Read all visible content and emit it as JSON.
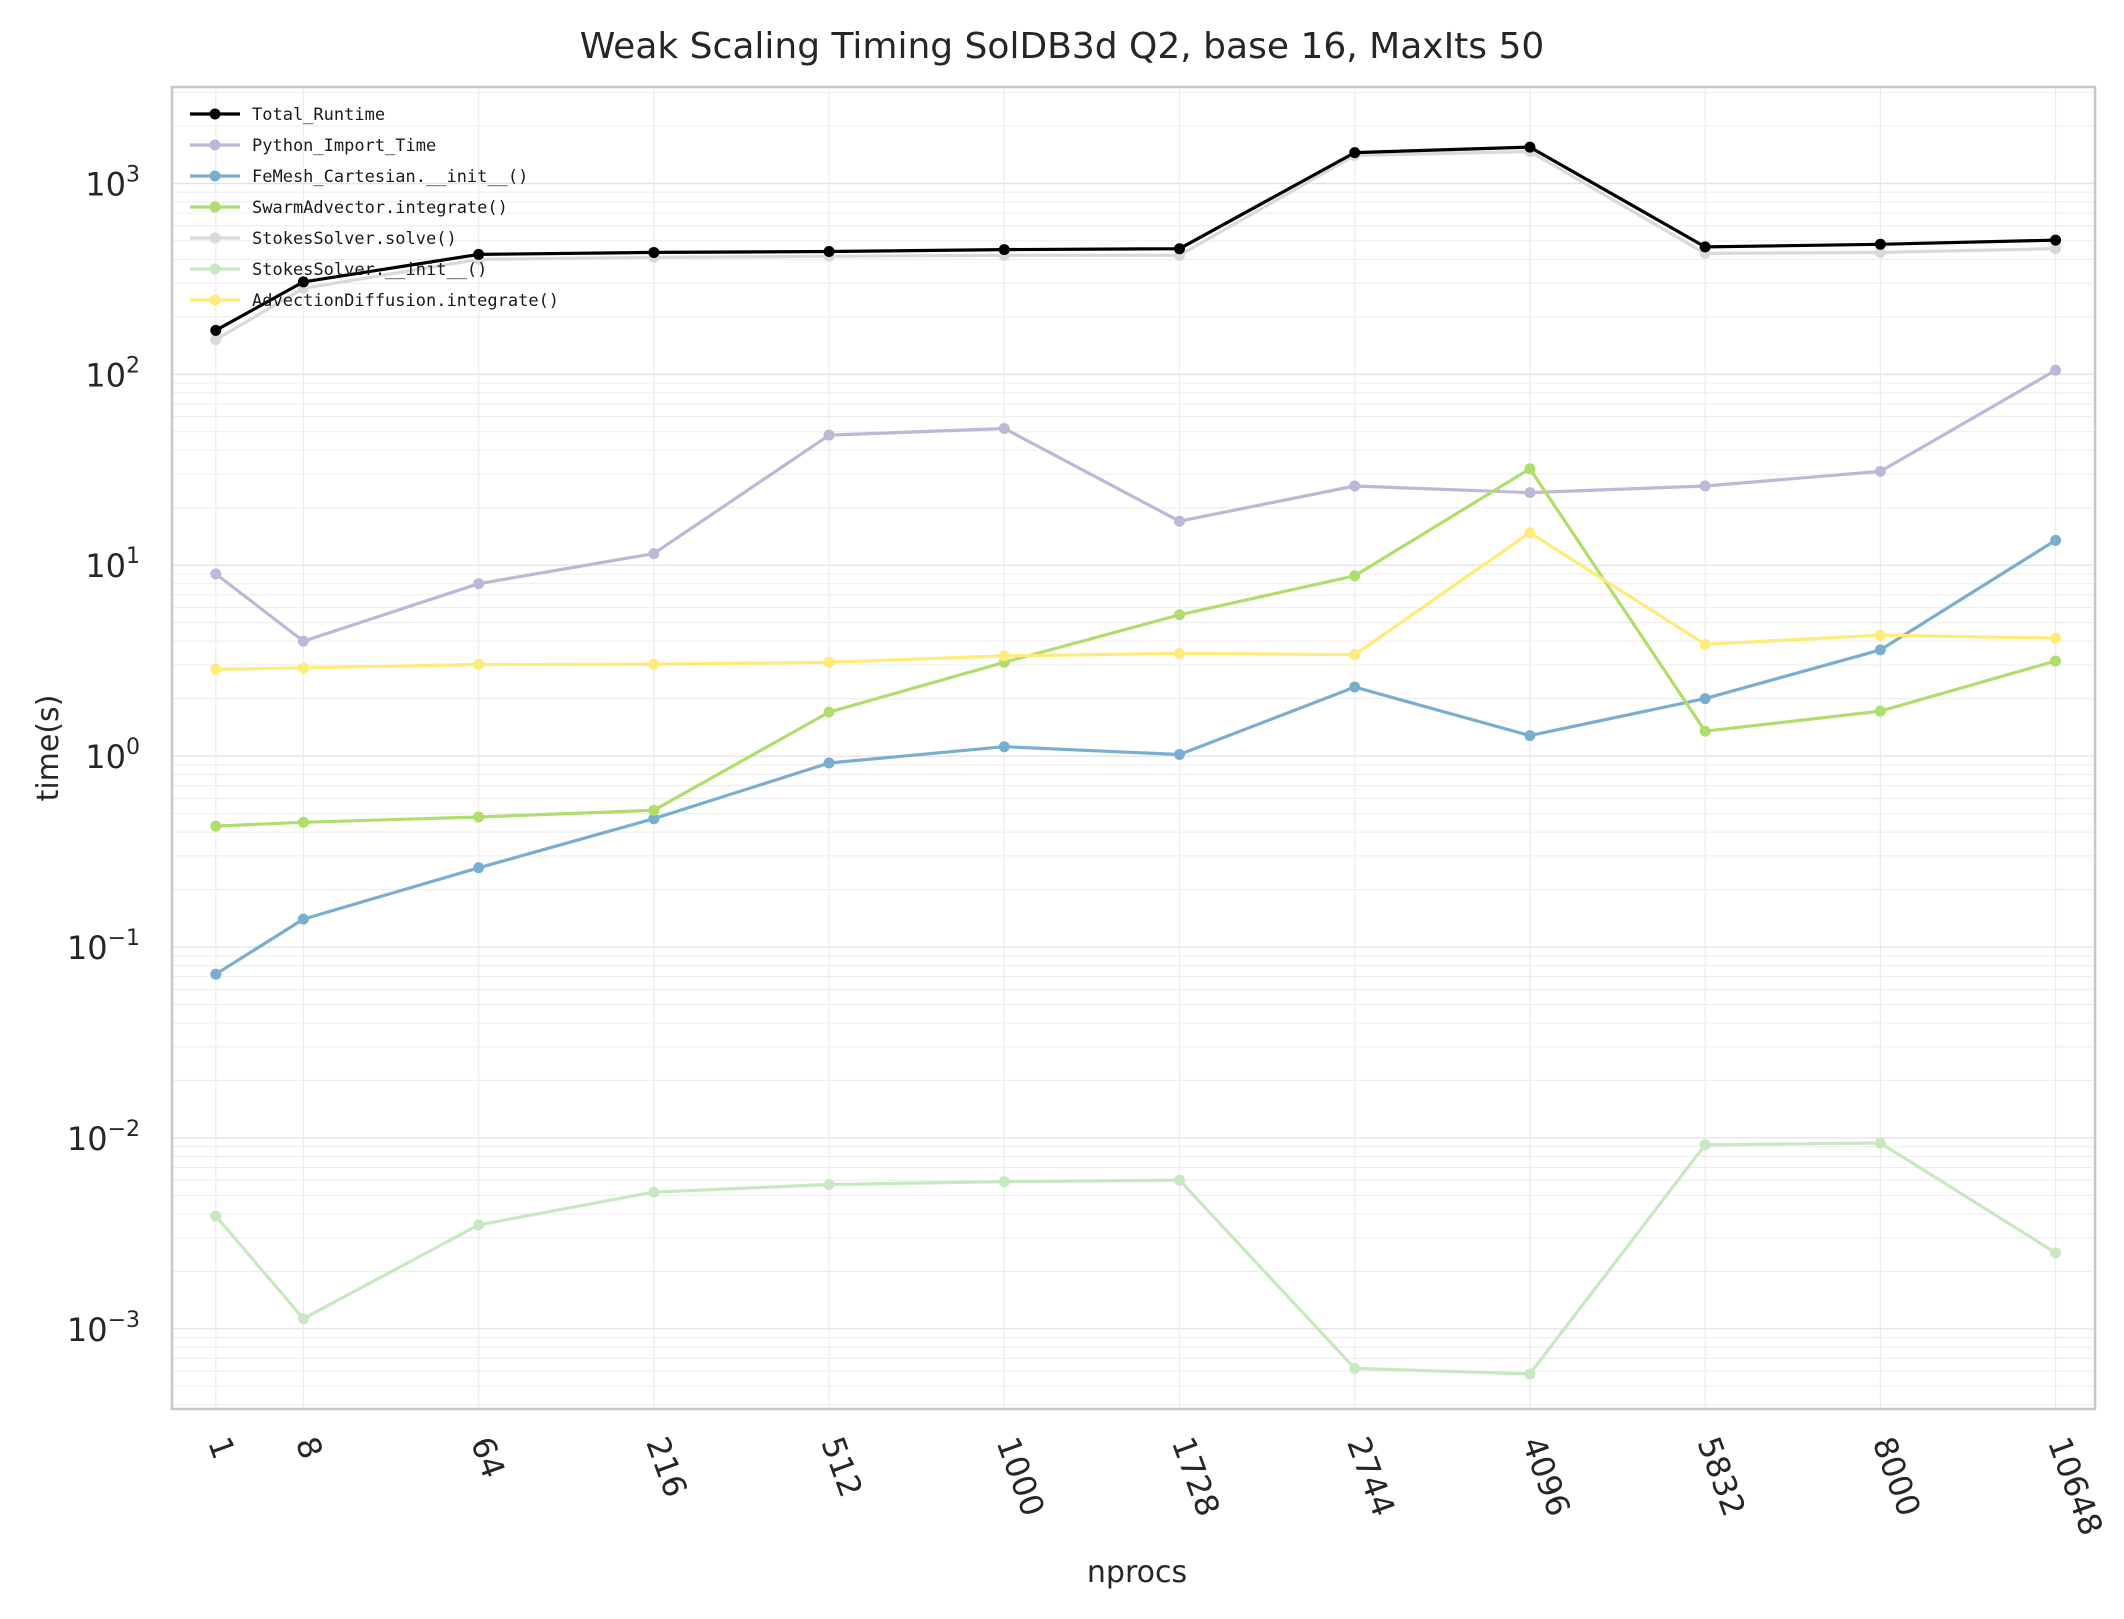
{
  "chart_data": {
    "type": "line",
    "title": "Weak Scaling Timing SolDB3d Q2, base 16, MaxIts 50",
    "xlabel": "nprocs",
    "ylabel": "time(s)",
    "x_scale": "cube-root",
    "y_scale": "log",
    "x_ticks": [
      "1",
      "8",
      "64",
      "216",
      "512",
      "1000",
      "1728",
      "2744",
      "4096",
      "5832",
      "8000",
      "10648"
    ],
    "x": [
      1,
      8,
      64,
      216,
      512,
      1000,
      1728,
      2744,
      4096,
      5832,
      8000,
      10648
    ],
    "ylim": [
      0.00038,
      3200
    ],
    "y_ticks": [
      {
        "value": 0.001,
        "base": "10",
        "exp": "−3"
      },
      {
        "value": 0.01,
        "base": "10",
        "exp": "−2"
      },
      {
        "value": 0.1,
        "base": "10",
        "exp": "−1"
      },
      {
        "value": 1,
        "base": "10",
        "exp": "0"
      },
      {
        "value": 10,
        "base": "10",
        "exp": "1"
      },
      {
        "value": 100,
        "base": "10",
        "exp": "2"
      },
      {
        "value": 1000,
        "base": "10",
        "exp": "3"
      }
    ],
    "grid": true,
    "legend_position": "top-left",
    "series": [
      {
        "name": "Total_Runtime",
        "color": "#000000",
        "values": [
          170,
          305,
          425,
          435,
          440,
          450,
          455,
          1450,
          1550,
          465,
          480,
          505
        ]
      },
      {
        "name": "Python_Import_Time",
        "color": "#bcb8d8",
        "values": [
          9.0,
          4.0,
          8.0,
          11.5,
          48,
          52,
          17,
          26,
          24,
          26,
          31,
          105
        ]
      },
      {
        "name": "FeMesh_Cartesian.__init__()",
        "color": "#7aaed0",
        "values": [
          0.072,
          0.14,
          0.26,
          0.47,
          0.92,
          1.12,
          1.02,
          2.3,
          1.28,
          2.0,
          3.6,
          13.5
        ]
      },
      {
        "name": "SwarmAdvector.integrate()",
        "color": "#b0de6c",
        "values": [
          0.43,
          0.45,
          0.48,
          0.52,
          1.7,
          3.1,
          5.5,
          8.8,
          32,
          1.35,
          1.72,
          3.15
        ]
      },
      {
        "name": "StokesSolver.solve()",
        "color": "#d9d9d9",
        "values": [
          152,
          282,
          400,
          410,
          415,
          420,
          420,
          1400,
          1470,
          430,
          435,
          455
        ]
      },
      {
        "name": "StokesSolver.__init__()",
        "color": "#c8e8c2",
        "values": [
          0.0039,
          0.00113,
          0.0035,
          0.0052,
          0.0057,
          0.0059,
          0.006,
          0.00062,
          0.00058,
          0.0092,
          0.0094,
          0.0025
        ]
      },
      {
        "name": "AdvectionDiffusion.integrate()",
        "color": "#ffeb79",
        "values": [
          2.85,
          2.9,
          3.02,
          3.03,
          3.1,
          3.35,
          3.45,
          3.4,
          14.8,
          3.85,
          4.3,
          4.15
        ]
      }
    ]
  }
}
